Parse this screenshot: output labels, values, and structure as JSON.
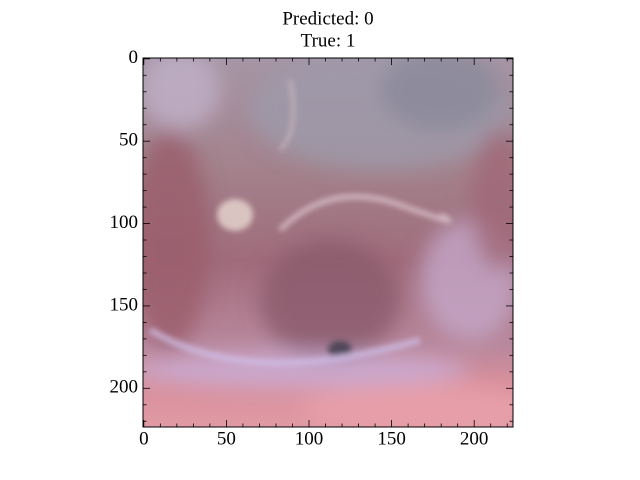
{
  "chart_data": {
    "type": "image",
    "title": [
      "Predicted: 0",
      "True: 1"
    ],
    "xlim": [
      -0.5,
      223.5
    ],
    "ylim": [
      223.5,
      -0.5
    ],
    "xticks": [
      0,
      50,
      100,
      150,
      200
    ],
    "yticks": [
      0,
      50,
      100,
      150,
      200
    ],
    "xminorticks": [
      10,
      20,
      30,
      40,
      60,
      70,
      80,
      90,
      110,
      120,
      130,
      140,
      160,
      170,
      180,
      190,
      210,
      220
    ],
    "yminorticks": [
      10,
      20,
      30,
      40,
      60,
      70,
      80,
      90,
      110,
      120,
      130,
      140,
      160,
      170,
      180,
      190,
      210,
      220
    ]
  }
}
